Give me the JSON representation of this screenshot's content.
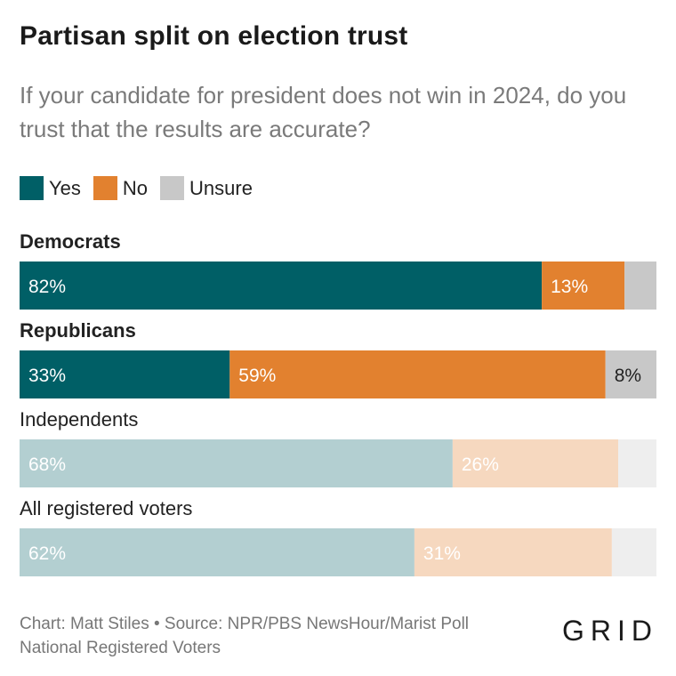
{
  "title": "Partisan split on election trust",
  "subtitle": "If your candidate for president does not win in 2024, do you trust that the results are accurate?",
  "footer": {
    "line1": "Chart: Matt Stiles • Source: NPR/PBS NewsHour/Marist Poll",
    "line2": "National Registered Voters"
  },
  "logo": "GRID",
  "colors": {
    "yes": "#005f66",
    "no": "#e2812f",
    "unsure": "#c8c8c8",
    "yes_light": "#b3cfd1",
    "no_light": "#f6d8bf",
    "unsure_light": "#eeeeee"
  },
  "chart_data": {
    "type": "bar",
    "orientation": "horizontal",
    "stacked": true,
    "legend": [
      "Yes",
      "No",
      "Unsure"
    ],
    "legend_placement": "top-left",
    "categories": [
      "Democrats",
      "Republicans",
      "Independents",
      "All registered voters"
    ],
    "series": [
      {
        "name": "Yes",
        "values": [
          82,
          33,
          68,
          62
        ]
      },
      {
        "name": "No",
        "values": [
          13,
          59,
          26,
          31
        ]
      },
      {
        "name": "Unsure",
        "values": [
          5,
          8,
          6,
          7
        ]
      }
    ],
    "highlighted": [
      true,
      true,
      false,
      false
    ],
    "labels": [
      [
        "82%",
        "13%",
        ""
      ],
      [
        "33%",
        "59%",
        "8%"
      ],
      [
        "68%",
        "26%",
        ""
      ],
      [
        "62%",
        "31%",
        ""
      ]
    ],
    "xlim": [
      0,
      100
    ]
  }
}
